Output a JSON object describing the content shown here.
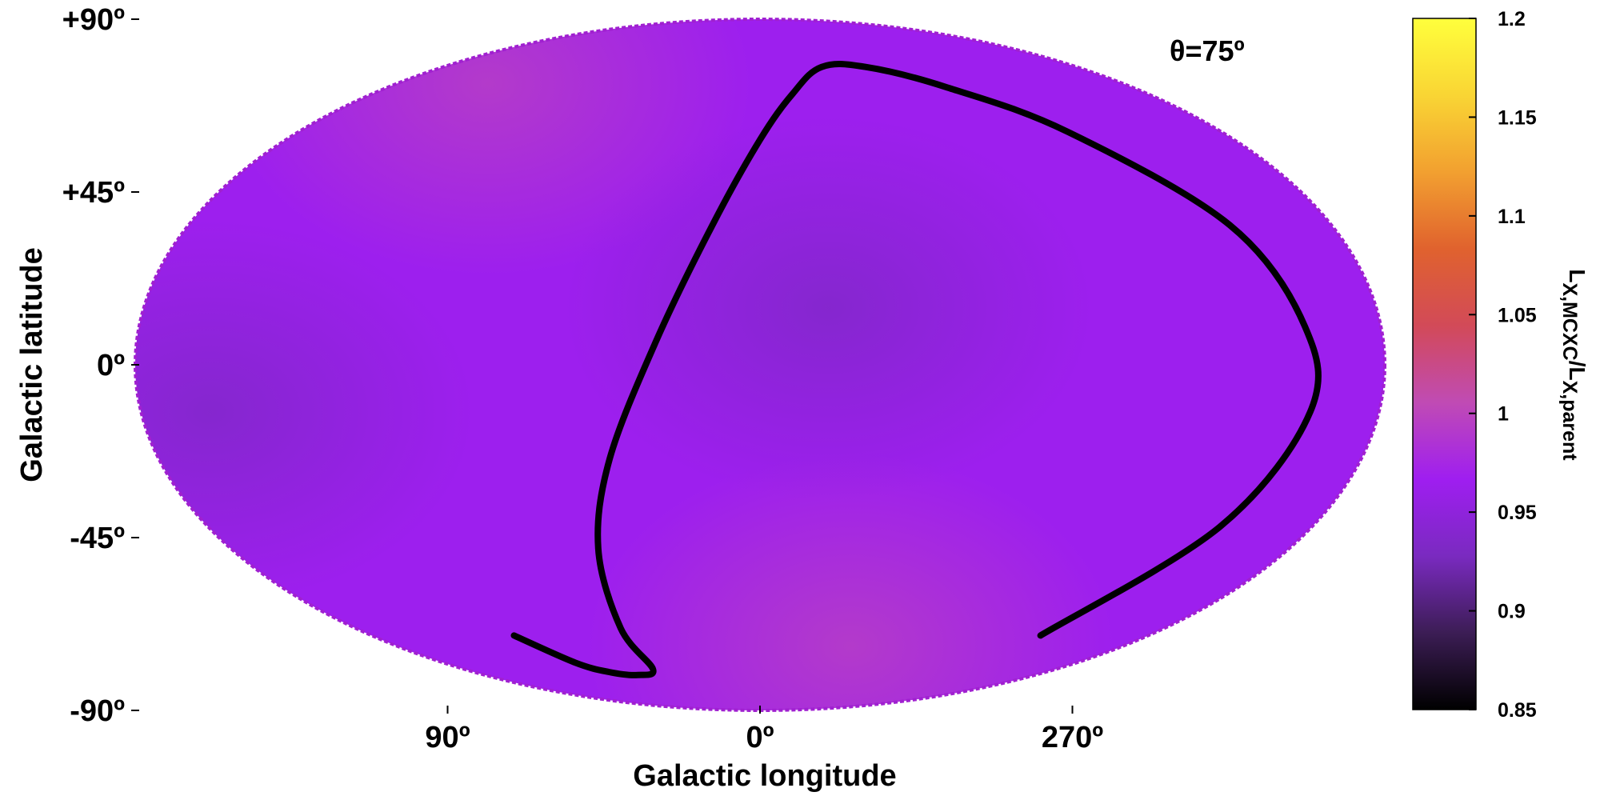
{
  "chart_data": {
    "type": "heatmap",
    "projection": "mollweide",
    "annotation": "θ=75º",
    "xlabel": "Galactic longitude",
    "ylabel": "Galactic latitude",
    "xticks": [
      {
        "lon": 90,
        "label": "90º"
      },
      {
        "lon": 0,
        "label": "0º"
      },
      {
        "lon": 270,
        "label": "270º"
      }
    ],
    "yticks": [
      {
        "lat": 90,
        "label": "+90º"
      },
      {
        "lat": 45,
        "label": "+45º"
      },
      {
        "lat": 0,
        "label": "0º"
      },
      {
        "lat": -45,
        "label": "-45º"
      },
      {
        "lat": -90,
        "label": "-90º"
      }
    ],
    "colorbar": {
      "label": "L_{X,MCXC}/L_{X,parent}",
      "label_main1": "L",
      "label_sub1": "X,MCXC",
      "label_slash": "/L",
      "label_sub2": "X,parent",
      "min": 0.85,
      "max": 1.2,
      "ticks": [
        "0.85",
        "0.9",
        "0.95",
        "1",
        "1.05",
        "1.1",
        "1.15",
        "1.2"
      ],
      "colormap": [
        "#000000",
        "#3c1d55",
        "#7a2ac0",
        "#9f1ef0",
        "#c04bb4",
        "#d24a58",
        "#e0622e",
        "#f2a030",
        "#f9d534",
        "#ffff3c"
      ]
    },
    "map_extremes": [
      {
        "type": "maximum",
        "lon": 135,
        "lat": 65,
        "value": 0.995
      },
      {
        "type": "maximum",
        "lon": 315,
        "lat": -65,
        "value": 0.995
      },
      {
        "type": "minimum",
        "lon": 160,
        "lat": -10,
        "value": 0.935
      },
      {
        "type": "minimum",
        "lon": 340,
        "lat": 12,
        "value": 0.935
      }
    ],
    "baseline_value": 0.965,
    "curve": {
      "description": "great-circle boundary",
      "points": [
        [
          114,
          -62
        ],
        [
          105,
          -70
        ],
        [
          95,
          -73
        ],
        [
          80,
          -74
        ],
        [
          65,
          -72
        ],
        [
          62,
          -60
        ],
        [
          55,
          -40
        ],
        [
          45,
          -20
        ],
        [
          30,
          5
        ],
        [
          15,
          30
        ],
        [
          0,
          50
        ],
        [
          -15,
          62
        ],
        [
          -35,
          70
        ],
        [
          -60,
          70
        ],
        [
          -90,
          64
        ],
        [
          -120,
          52
        ],
        [
          -148,
          30
        ],
        [
          -158,
          8
        ],
        [
          -160,
          -10
        ],
        [
          -150,
          -35
        ],
        [
          -130,
          -62
        ]
      ]
    }
  }
}
